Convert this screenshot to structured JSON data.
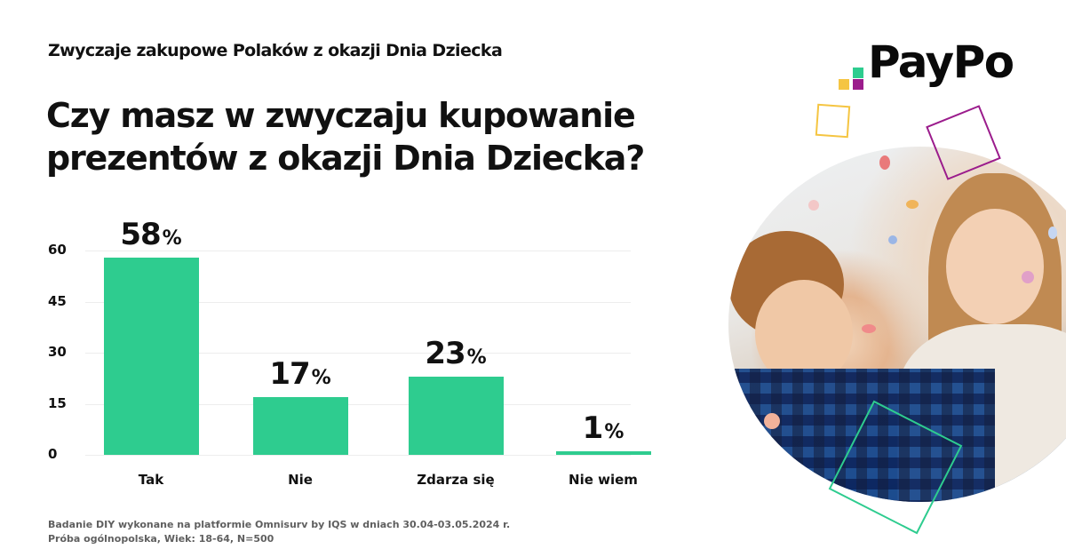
{
  "header": {
    "subtitle_prefix": "Zwyczaje zakupowe Polaków z okazji ",
    "subtitle_highlight": "Dnia Dziecka",
    "title_line1": "Czy masz w zwyczaju kupowanie",
    "title_line2": "prezentów z okazji Dnia Dziecka?"
  },
  "brand": {
    "name": "PayPo",
    "colors": {
      "green": "#2ecc8f",
      "yellow": "#f5c542",
      "purple": "#9b1c8c"
    }
  },
  "chart_data": {
    "type": "bar",
    "title": "Czy masz w zwyczaju kupowanie prezentów z okazji Dnia Dziecka?",
    "categories": [
      "Tak",
      "Nie",
      "Zdarza się",
      "Nie wiem"
    ],
    "values": [
      58,
      17,
      23,
      1
    ],
    "value_labels": [
      "58",
      "17",
      "23",
      "1"
    ],
    "value_suffix": "%",
    "xlabel": "",
    "ylabel": "",
    "ylim": [
      0,
      60
    ],
    "yticks": [
      "60",
      "45",
      "30",
      "15",
      "0"
    ],
    "grid": true,
    "legend": null,
    "bar_color": "#2ecc8f"
  },
  "footnote": {
    "line1": "Badanie DIY wykonane na platformie Omnisurv by IQS w dniach 30.04-03.05.2024 r.",
    "line2": "Próba ogólnopolska, Wiek: 18-64, N=500"
  }
}
